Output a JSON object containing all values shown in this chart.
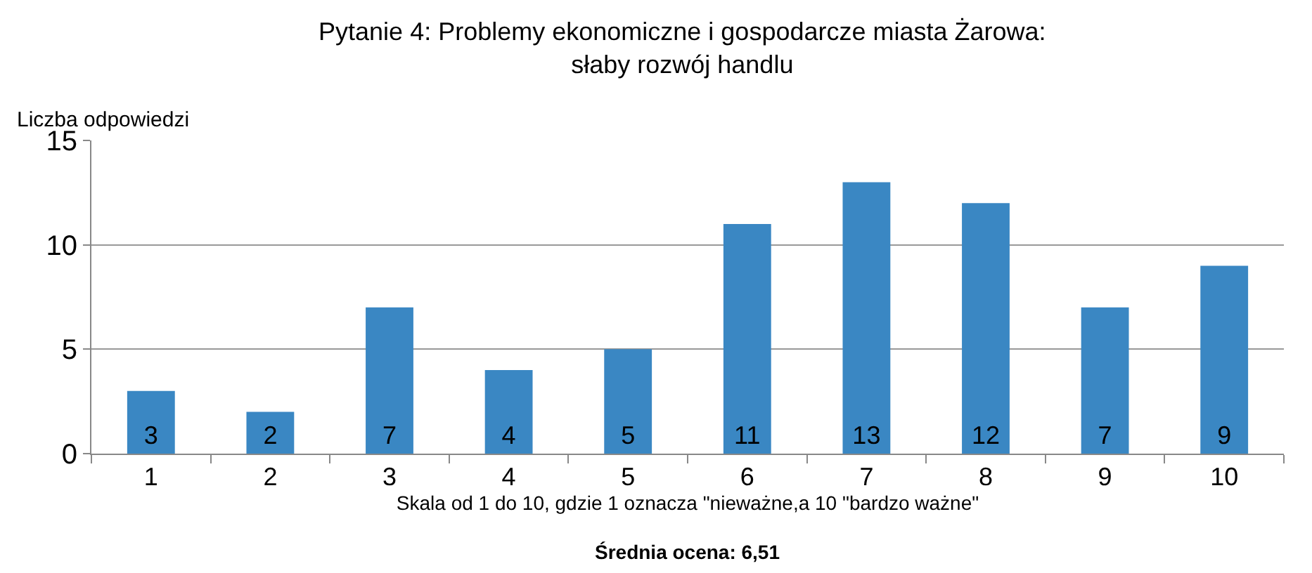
{
  "chart_data": {
    "type": "bar",
    "title": "Pytanie 4: Problemy ekonomiczne i gospodarcze miasta Żarowa:\nsłaby rozwój handlu",
    "ylabel": "Liczba odpowiedzi",
    "xlabel": "Skala od 1 do 10, gdzie 1 oznacza \"nieważne,a 10 \"bardzo ważne\"",
    "annotations": [
      "Średnia ocena: 6,51"
    ],
    "categories": [
      "1",
      "2",
      "3",
      "4",
      "5",
      "6",
      "7",
      "8",
      "9",
      "10"
    ],
    "values": [
      3,
      2,
      7,
      4,
      5,
      11,
      13,
      12,
      7,
      9
    ],
    "color": "#3a87c3",
    "ylim": [
      0,
      15
    ],
    "yticks": [
      0,
      5,
      10,
      15
    ],
    "grid": "y",
    "data_labels": true
  }
}
